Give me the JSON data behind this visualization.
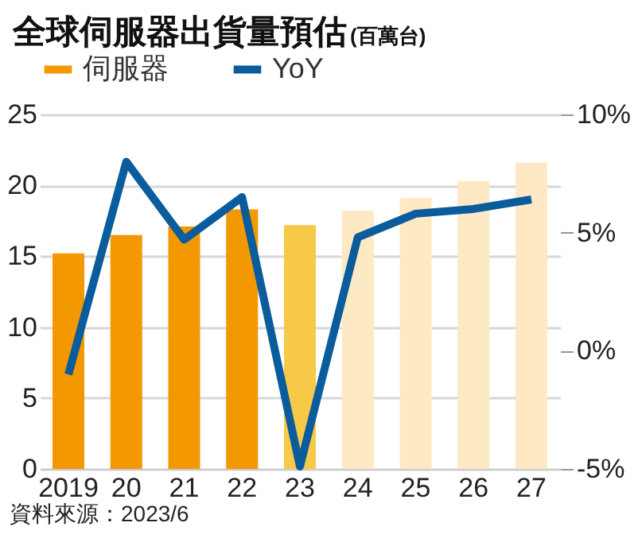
{
  "chart_data": {
    "type": "bar",
    "title": "全球伺服器出貨量預估",
    "subtitle": "(百萬台)",
    "categories": [
      "2019",
      "20",
      "21",
      "22",
      "23",
      "24",
      "25",
      "26",
      "27"
    ],
    "series": [
      {
        "name": "伺服器",
        "color": "#f39800",
        "colors": [
          "#f39800",
          "#f39800",
          "#f39800",
          "#f39800",
          "#f7c948",
          "#fde9c4",
          "#fde9c4",
          "#fde9c4",
          "#fde9c4"
        ],
        "values": [
          15.2,
          16.5,
          17.1,
          18.3,
          17.2,
          18.2,
          19.1,
          20.3,
          21.6
        ]
      },
      {
        "name": "YoY",
        "type": "line",
        "axis": "y2",
        "color": "#0a5c9c",
        "values": [
          -1.0,
          8.0,
          4.7,
          6.5,
          -4.9,
          4.8,
          5.8,
          6.0,
          6.4
        ]
      }
    ],
    "ylim": [
      0,
      25
    ],
    "yticks": [
      0,
      5,
      10,
      15,
      20,
      25
    ],
    "y2lim": [
      -5,
      10
    ],
    "y2ticks": [
      {
        "value": -5,
        "label": "-5%"
      },
      {
        "value": 0,
        "label": "0%"
      },
      {
        "value": 5,
        "label": "5%"
      },
      {
        "value": 10,
        "label": "10%"
      }
    ],
    "grid": "y",
    "legend": "top",
    "marker": "none",
    "line_style": "solid",
    "annotations": [
      "資料來源：2023/6"
    ]
  }
}
